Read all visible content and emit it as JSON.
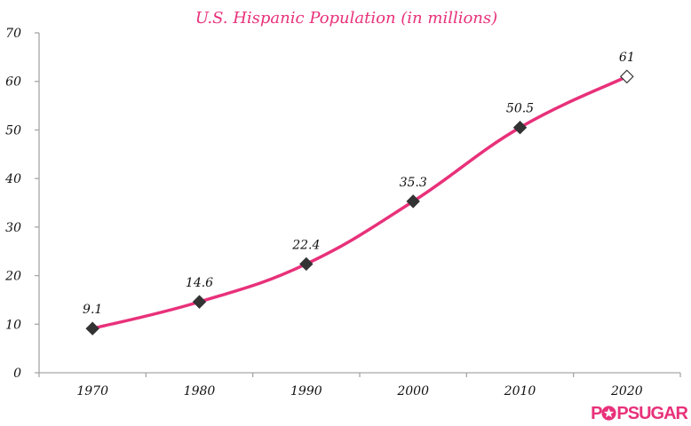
{
  "chart_data": {
    "type": "line",
    "title": "U.S. Hispanic Population (in millions)",
    "xlabel": "",
    "ylabel": "",
    "categories": [
      "1970",
      "1980",
      "1990",
      "2000",
      "2010",
      "2020"
    ],
    "series": [
      {
        "name": "U.S. Hispanic Population",
        "values": [
          9.1,
          14.6,
          22.4,
          35.3,
          50.5,
          61
        ],
        "data_labels": [
          "9.1",
          "14.6",
          "22.4",
          "35.3",
          "50.5",
          "61"
        ],
        "marker": "diamond",
        "projected_points": [
          5
        ],
        "color": "#e8317a",
        "marker_color": "#333333"
      }
    ],
    "ylim": [
      0,
      70
    ],
    "yticks": [
      "0",
      "10",
      "20",
      "30",
      "40",
      "50",
      "60",
      "70"
    ],
    "grid": false,
    "legend": "none"
  },
  "branding": {
    "logo_text_pre": "P",
    "logo_text_post": "PSUGAR",
    "logo_color": "#e8317a"
  }
}
